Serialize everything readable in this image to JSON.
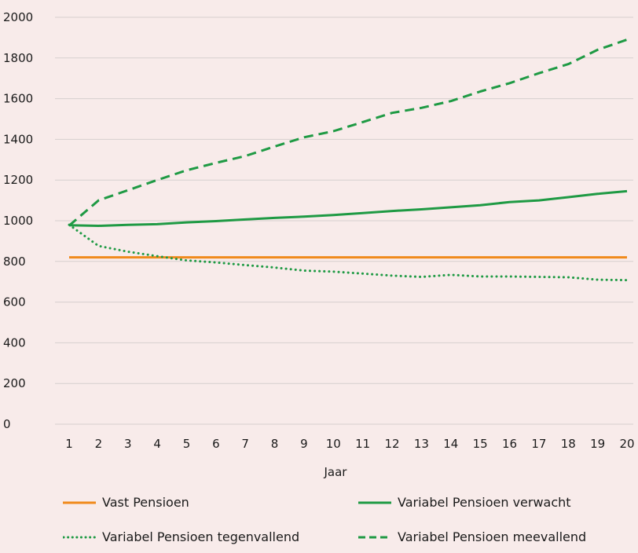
{
  "colors": {
    "vast": "#f08a1c",
    "variabel": "#1f9a44",
    "grid": "#d6cfce",
    "background": "#f8ebea"
  },
  "chart_data": {
    "type": "line",
    "title": "",
    "xlabel": "Jaar",
    "ylabel": "",
    "x": [
      1,
      2,
      3,
      4,
      5,
      6,
      7,
      8,
      9,
      10,
      11,
      12,
      13,
      14,
      15,
      16,
      17,
      18,
      19,
      20
    ],
    "ylim": [
      0,
      2000
    ],
    "yticks": [
      0,
      200,
      400,
      600,
      800,
      1000,
      1200,
      1400,
      1600,
      1800,
      2000
    ],
    "grid": true,
    "legend_position": "bottom",
    "series": [
      {
        "name": "Vast Pensioen",
        "style": "solid",
        "color": "#f08a1c",
        "values": [
          820,
          820,
          820,
          820,
          820,
          820,
          820,
          820,
          820,
          820,
          820,
          820,
          820,
          820,
          820,
          820,
          820,
          820,
          820,
          820
        ]
      },
      {
        "name": "Variabel Pensioen verwacht",
        "style": "solid",
        "color": "#1f9a44",
        "values": [
          978,
          975,
          980,
          983,
          992,
          998,
          1006,
          1014,
          1020,
          1028,
          1038,
          1048,
          1056,
          1066,
          1076,
          1092,
          1100,
          1116,
          1132,
          1145
        ]
      },
      {
        "name": "Variabel Pensioen tegenvallend",
        "style": "dotted",
        "color": "#1f9a44",
        "values": [
          980,
          876,
          848,
          826,
          805,
          795,
          782,
          770,
          755,
          750,
          740,
          730,
          724,
          734,
          726,
          726,
          724,
          722,
          710,
          708
        ]
      },
      {
        "name": "Variabel Pensioen meevallend",
        "style": "dashed",
        "color": "#1f9a44",
        "values": [
          976,
          1100,
          1150,
          1200,
          1248,
          1284,
          1318,
          1365,
          1410,
          1440,
          1485,
          1530,
          1555,
          1588,
          1635,
          1676,
          1725,
          1770,
          1840,
          1890
        ]
      }
    ]
  }
}
